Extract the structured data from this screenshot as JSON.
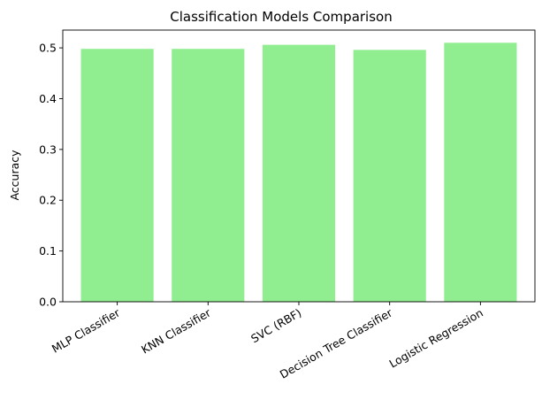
{
  "chart_data": {
    "type": "bar",
    "title": "Classification Models Comparison",
    "xlabel": "",
    "ylabel": "Accuracy",
    "categories": [
      "MLP Classifier",
      "KNN Classifier",
      "SVC (RBF)",
      "Decision Tree Classifier",
      "Logistic Regression"
    ],
    "values": [
      0.498,
      0.498,
      0.506,
      0.496,
      0.51
    ],
    "ylim": [
      0,
      0.535
    ],
    "yticks": [
      0.0,
      0.1,
      0.2,
      0.3,
      0.4,
      0.5
    ],
    "ytick_labels": [
      "0.0",
      "0.1",
      "0.2",
      "0.3",
      "0.4",
      "0.5"
    ],
    "bar_color": "#90ee90",
    "grid": false,
    "legend": "none"
  }
}
